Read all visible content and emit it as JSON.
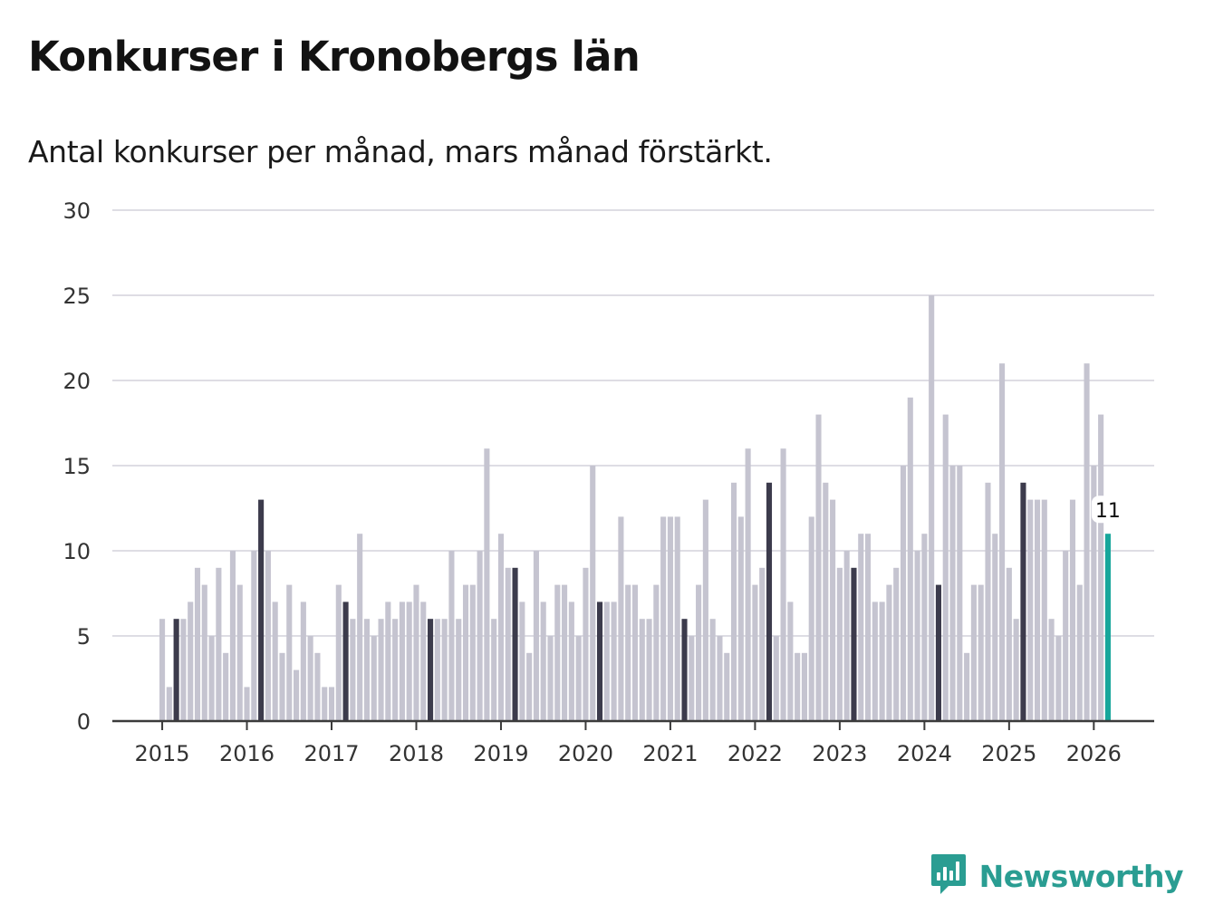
{
  "title": "Konkurser i Kronobergs län",
  "subtitle": "Antal konkurser per månad, mars månad förstärkt.",
  "brand": {
    "name": "Newsworthy",
    "icon": "bar-chart-speech-bubble-icon"
  },
  "colors": {
    "bar": "#c5c4d0",
    "highlight": "#3c3b4c",
    "latest": "#16a69b",
    "gridline": "#dedde4",
    "axis": "#3b3b3b",
    "brand": "#2a9d92"
  },
  "chart_data": {
    "type": "bar",
    "title": "Konkurser i Kronobergs län",
    "subtitle": "Antal konkurser per månad, mars månad förstärkt.",
    "xlabel": "",
    "ylabel": "",
    "ylim": [
      0,
      30
    ],
    "yticks": [
      0,
      5,
      10,
      15,
      20,
      25,
      30
    ],
    "xticks": [
      "2015",
      "2016",
      "2017",
      "2018",
      "2019",
      "2020",
      "2021",
      "2022",
      "2023",
      "2024",
      "2025",
      "2026"
    ],
    "grid": true,
    "start": "2015-01",
    "highlight_month": "mars",
    "series": [
      {
        "name": "2015",
        "values": [
          6,
          2,
          6,
          6,
          7,
          9,
          8,
          5,
          9,
          4,
          10,
          8
        ]
      },
      {
        "name": "2016",
        "values": [
          2,
          10,
          13,
          10,
          7,
          4,
          8,
          3,
          7,
          5,
          4,
          2
        ]
      },
      {
        "name": "2017",
        "values": [
          2,
          8,
          7,
          6,
          11,
          6,
          5,
          6,
          7,
          6,
          7,
          7
        ]
      },
      {
        "name": "2018",
        "values": [
          8,
          7,
          6,
          6,
          6,
          10,
          6,
          8,
          8,
          10,
          16,
          6
        ]
      },
      {
        "name": "2019",
        "values": [
          11,
          9,
          9,
          7,
          4,
          10,
          7,
          5,
          8,
          8,
          7,
          5
        ]
      },
      {
        "name": "2020",
        "values": [
          9,
          15,
          7,
          7,
          7,
          12,
          8,
          8,
          6,
          6,
          8,
          12
        ]
      },
      {
        "name": "2021",
        "values": [
          12,
          12,
          6,
          5,
          8,
          13,
          6,
          5,
          4,
          14,
          12,
          16
        ]
      },
      {
        "name": "2022",
        "values": [
          8,
          9,
          14,
          5,
          16,
          7,
          4,
          4,
          12,
          18,
          14,
          13
        ]
      },
      {
        "name": "2023",
        "values": [
          9,
          10,
          9,
          11,
          11,
          7,
          7,
          8,
          9,
          15,
          19,
          10
        ]
      },
      {
        "name": "2024",
        "values": [
          11,
          25,
          8,
          18,
          15,
          15,
          4,
          8,
          8,
          14,
          11,
          21
        ]
      },
      {
        "name": "2025",
        "values": [
          9,
          6,
          14,
          13,
          13,
          13,
          6,
          5,
          10,
          13,
          8,
          21
        ]
      },
      {
        "name": "2026",
        "values": [
          15,
          18,
          11
        ]
      }
    ],
    "annotations": [
      {
        "category": "2026-03",
        "label": "11"
      }
    ]
  }
}
